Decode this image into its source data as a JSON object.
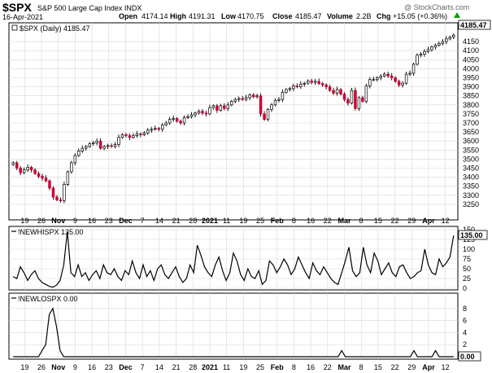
{
  "header": {
    "symbol": "$SPX",
    "name": "S&P 500 Large Cap Index INDX",
    "date": "16-Apr-2021",
    "watermark": "@ StockCharts.com",
    "ohlc": {
      "open_label": "Open",
      "open": "4174.14",
      "high_label": "High",
      "high": "4191.31",
      "low_label": "Low",
      "low": "4170.75",
      "close_label": "Close",
      "close": "4185.47",
      "volume_label": "Volume",
      "volume": "2.2B",
      "chg_label": "Chg",
      "chg": "+15.05 (+0.36%)"
    }
  },
  "colors": {
    "up_fill": "#ffffff",
    "down_fill": "#cc0033",
    "candle_line": "#000000",
    "grid": "#d8d8d8",
    "chg_arrow": "#00a000"
  },
  "chart_data": [
    {
      "type": "candlestick",
      "title": "$SPX (Daily) 4185.47",
      "ylim": [
        3200,
        4200
      ],
      "yticks": [
        3250,
        3300,
        3350,
        3400,
        3450,
        3500,
        3550,
        3600,
        3650,
        3700,
        3750,
        3800,
        3850,
        3900,
        3950,
        4000,
        4050,
        4100,
        4150,
        4185.47
      ],
      "last_value_label": "4185.47",
      "xticks": [
        "19",
        "26",
        "Nov",
        "9",
        "16",
        "23",
        "Dec",
        "7",
        "14",
        "21",
        "28",
        "2021",
        "11",
        "19",
        "25",
        "Feb",
        "8",
        "16",
        "22",
        "Mar",
        "8",
        "15",
        "22",
        "29",
        "Apr",
        "12"
      ],
      "bold_xticks": [
        "Nov",
        "Dec",
        "2021",
        "Feb",
        "Mar",
        "Apr"
      ],
      "grid": true,
      "closes": [
        3480,
        3450,
        3425,
        3440,
        3455,
        3440,
        3420,
        3405,
        3395,
        3380,
        3340,
        3290,
        3275,
        3270,
        3360,
        3430,
        3480,
        3520,
        3545,
        3560,
        3570,
        3585,
        3590,
        3600,
        3560,
        3570,
        3575,
        3570,
        3580,
        3620,
        3635,
        3630,
        3620,
        3630,
        3640,
        3635,
        3645,
        3660,
        3665,
        3670,
        3665,
        3690,
        3700,
        3720,
        3725,
        3710,
        3700,
        3730,
        3735,
        3745,
        3755,
        3765,
        3755,
        3750,
        3785,
        3795,
        3770,
        3795,
        3780,
        3800,
        3820,
        3830,
        3835,
        3830,
        3840,
        3855,
        3845,
        3850,
        3750,
        3720,
        3775,
        3800,
        3825,
        3830,
        3870,
        3885,
        3890,
        3905,
        3900,
        3915,
        3920,
        3932,
        3925,
        3930,
        3918,
        3910,
        3900,
        3880,
        3865,
        3885,
        3860,
        3830,
        3810,
        3880,
        3780,
        3840,
        3820,
        3905,
        3940,
        3940,
        3950,
        3960,
        3970,
        3960,
        3950,
        3930,
        3910,
        3920,
        3970,
        3975,
        4025,
        4075,
        4080,
        4095,
        4105,
        4120,
        4130,
        4140,
        4150,
        4165,
        4175,
        4185.47
      ]
    },
    {
      "type": "line",
      "title": "!NEWHISPX 135.00",
      "ylim": [
        0,
        150
      ],
      "yticks": [
        0,
        25,
        50,
        75,
        100,
        125,
        150
      ],
      "last_value_label": "135.00",
      "values": [
        30,
        25,
        55,
        40,
        20,
        35,
        45,
        25,
        15,
        10,
        5,
        3,
        8,
        20,
        60,
        145,
        40,
        30,
        60,
        30,
        40,
        20,
        35,
        45,
        25,
        60,
        40,
        35,
        50,
        30,
        20,
        45,
        35,
        70,
        40,
        25,
        60,
        30,
        45,
        20,
        50,
        60,
        35,
        25,
        40,
        55,
        30,
        15,
        25,
        60,
        40,
        110,
        85,
        55,
        40,
        30,
        60,
        80,
        45,
        20,
        40,
        90,
        70,
        35,
        20,
        50,
        30,
        25,
        45,
        10,
        20,
        70,
        60,
        40,
        55,
        75,
        60,
        35,
        50,
        80,
        60,
        40,
        25,
        65,
        45,
        35,
        55,
        40,
        25,
        15,
        10,
        40,
        70,
        105,
        45,
        30,
        40,
        105,
        60,
        40,
        90,
        70,
        35,
        50,
        65,
        40,
        30,
        55,
        60,
        40,
        25,
        30,
        40,
        45,
        100,
        60,
        40,
        35,
        75,
        55,
        65,
        80,
        135
      ]
    },
    {
      "type": "line",
      "title": "!NEWLOSPX 0.00",
      "ylim": [
        0,
        10
      ],
      "yticks": [
        0,
        2,
        4,
        6,
        8
      ],
      "last_value_label": "0.00",
      "values": [
        0,
        0,
        0,
        0,
        0,
        0,
        0,
        0,
        1,
        2,
        7,
        8,
        5,
        1,
        0,
        0,
        0,
        0,
        0,
        0,
        0,
        0,
        0,
        0,
        0,
        0,
        0,
        0,
        0,
        0,
        0,
        0,
        0,
        0,
        0,
        0,
        0,
        0,
        0,
        0,
        0,
        0,
        0,
        0,
        0,
        0,
        0,
        0,
        0,
        0,
        0,
        0,
        0,
        0,
        0,
        0,
        0,
        0,
        0,
        0,
        0,
        0,
        0,
        0,
        0,
        0,
        0,
        0,
        0,
        0,
        0,
        0,
        0,
        0,
        0,
        0,
        0,
        0,
        0,
        0,
        0,
        0,
        0,
        0,
        0,
        0,
        0,
        0,
        0,
        0,
        0,
        1,
        0,
        0,
        0,
        0,
        0,
        0,
        0,
        0,
        0,
        0,
        0,
        0,
        0,
        0,
        0,
        0,
        0,
        0,
        0,
        1,
        0,
        0,
        0,
        0,
        0,
        1,
        0,
        0,
        0,
        0,
        0
      ]
    }
  ]
}
